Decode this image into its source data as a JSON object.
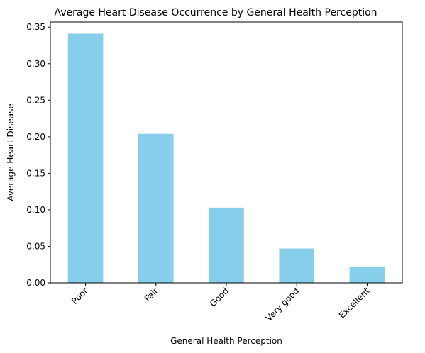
{
  "chart_data": {
    "type": "bar",
    "title": "Average Heart Disease Occurrence by General Health Perception",
    "xlabel": "General Health Perception",
    "ylabel": "Average Heart Disease",
    "categories": [
      "Poor",
      "Fair",
      "Good",
      "Very good",
      "Excellent"
    ],
    "values": [
      0.341,
      0.204,
      0.103,
      0.047,
      0.022
    ],
    "ylim": [
      0,
      0.357
    ],
    "yticks": [
      "0.00",
      "0.05",
      "0.10",
      "0.15",
      "0.20",
      "0.25",
      "0.30",
      "0.35"
    ],
    "ytick_values": [
      0,
      0.05,
      0.1,
      0.15,
      0.2,
      0.25,
      0.3,
      0.35
    ],
    "bar_color": "#87CEEB",
    "grid": false,
    "legend": "none"
  }
}
